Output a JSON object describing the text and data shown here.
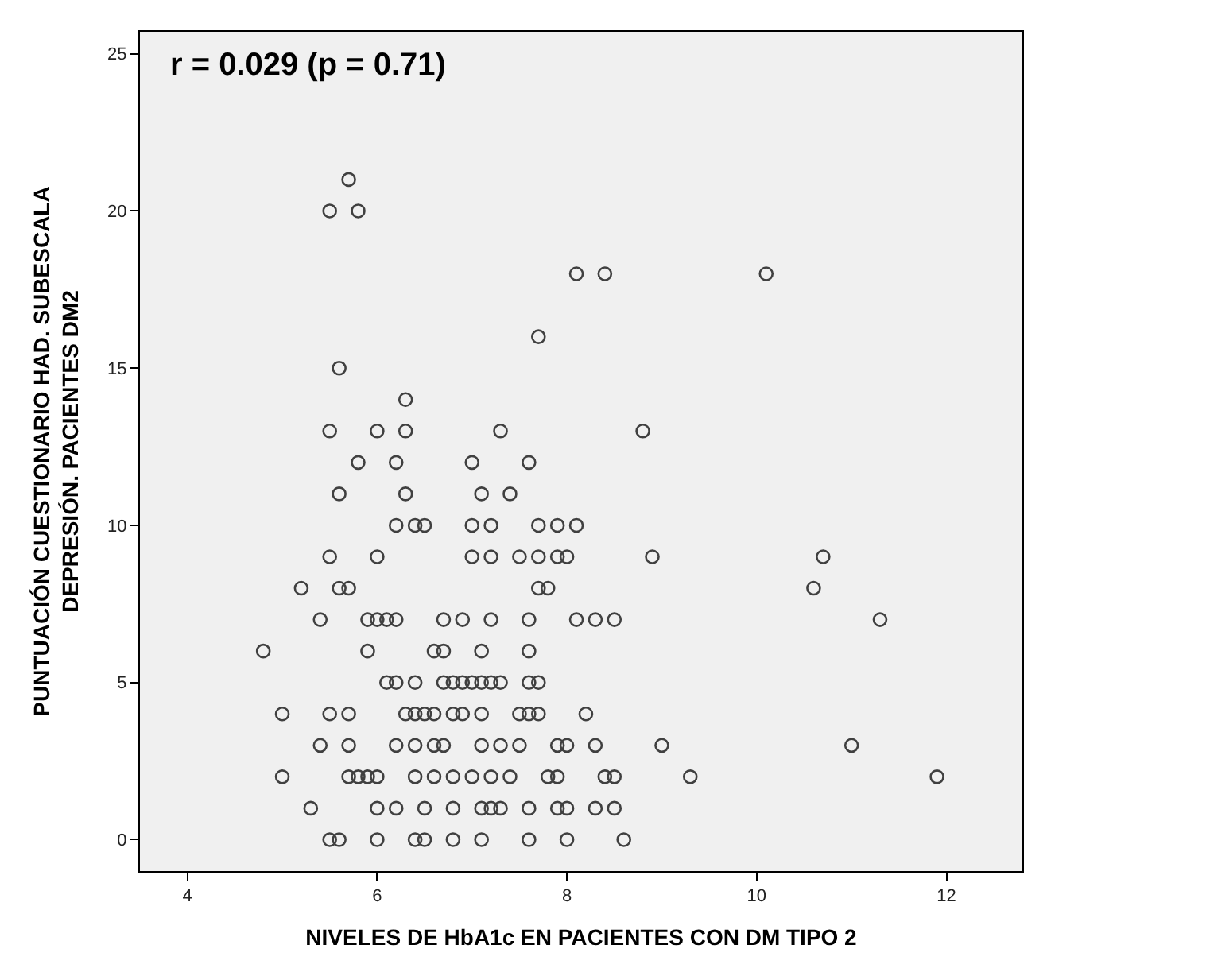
{
  "chart_data": {
    "type": "scatter",
    "xlabel": "NIVELES DE HbA1c EN PACIENTES CON DM TIPO 2",
    "ylabel": "PUNTUACIÓN CUESTIONARIO HAD. SUBESCALA\nDEPRESIÓN. PACIENTES DM2",
    "annotations": [
      "r = 0.029 (p = 0.71)"
    ],
    "xlim": [
      3.5,
      12.8
    ],
    "xticks": [
      4,
      6,
      8,
      10,
      12
    ],
    "ylim": [
      -1,
      25.7
    ],
    "yticks": [
      0,
      5,
      10,
      15,
      20,
      25
    ],
    "grid": false,
    "marker": "circle",
    "series": [
      {
        "color": "#404040",
        "x": [
          5.7,
          5.5,
          5.8,
          8.1,
          8.4,
          10.1,
          7.7,
          5.6,
          6.3,
          5.5,
          6.0,
          6.3,
          7.3,
          8.8,
          5.8,
          6.2,
          7.0,
          7.6,
          5.6,
          6.3,
          7.1,
          7.4,
          6.2,
          6.4,
          6.5,
          7.0,
          7.2,
          7.7,
          7.9,
          8.1,
          5.5,
          6.0,
          7.0,
          7.2,
          7.5,
          7.7,
          7.9,
          8.0,
          8.9,
          10.7,
          5.2,
          5.6,
          5.7,
          7.7,
          7.8,
          10.6,
          5.4,
          5.9,
          6.0,
          6.1,
          6.2,
          6.7,
          6.9,
          7.2,
          7.6,
          8.1,
          8.3,
          8.5,
          11.3,
          4.8,
          5.9,
          6.6,
          6.7,
          7.1,
          7.6,
          6.1,
          6.2,
          6.4,
          6.7,
          6.8,
          6.9,
          7.0,
          7.1,
          7.2,
          7.3,
          7.6,
          7.7,
          5.0,
          5.5,
          5.7,
          6.3,
          6.4,
          6.5,
          6.6,
          6.8,
          6.9,
          7.1,
          7.5,
          7.6,
          7.7,
          8.2,
          5.4,
          5.7,
          6.2,
          6.4,
          6.6,
          6.7,
          7.1,
          7.3,
          7.5,
          7.9,
          8.0,
          8.3,
          9.0,
          11.0,
          5.0,
          5.7,
          5.8,
          5.9,
          6.0,
          6.4,
          6.6,
          6.8,
          7.0,
          7.2,
          7.4,
          7.8,
          7.9,
          8.4,
          8.5,
          9.3,
          11.9,
          5.3,
          6.0,
          6.2,
          6.5,
          6.8,
          7.1,
          7.2,
          7.3,
          7.6,
          7.9,
          8.0,
          8.3,
          8.5,
          5.5,
          5.6,
          6.0,
          6.4,
          6.5,
          6.8,
          7.1,
          7.6,
          8.0,
          8.6
        ],
        "values": [
          21,
          20,
          20,
          18,
          18,
          18,
          16,
          15,
          14,
          13,
          13,
          13,
          13,
          13,
          12,
          12,
          12,
          12,
          11,
          11,
          11,
          11,
          10,
          10,
          10,
          10,
          10,
          10,
          10,
          10,
          9,
          9,
          9,
          9,
          9,
          9,
          9,
          9,
          9,
          9,
          8,
          8,
          8,
          8,
          8,
          8,
          7,
          7,
          7,
          7,
          7,
          7,
          7,
          7,
          7,
          7,
          7,
          7,
          7,
          6,
          6,
          6,
          6,
          6,
          6,
          5,
          5,
          5,
          5,
          5,
          5,
          5,
          5,
          5,
          5,
          5,
          5,
          4,
          4,
          4,
          4,
          4,
          4,
          4,
          4,
          4,
          4,
          4,
          4,
          4,
          4,
          3,
          3,
          3,
          3,
          3,
          3,
          3,
          3,
          3,
          3,
          3,
          3,
          3,
          3,
          2,
          2,
          2,
          2,
          2,
          2,
          2,
          2,
          2,
          2,
          2,
          2,
          2,
          2,
          2,
          2,
          2,
          1,
          1,
          1,
          1,
          1,
          1,
          1,
          1,
          1,
          1,
          1,
          1,
          1,
          0,
          0,
          0,
          0,
          0,
          0,
          0,
          0,
          0,
          0
        ]
      }
    ]
  }
}
